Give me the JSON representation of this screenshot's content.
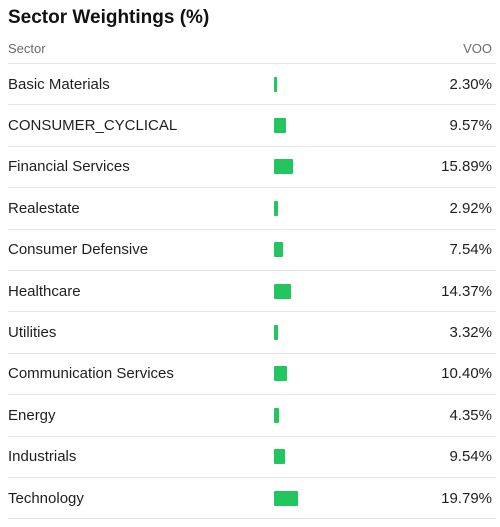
{
  "title": "Sector Weightings (%)",
  "header": {
    "sector_label": "Sector",
    "fund_label": "VOO"
  },
  "colors": {
    "bar": "#22c55e"
  },
  "chart_data": {
    "type": "bar",
    "title": "Sector Weightings (%)",
    "categories": [
      "Basic Materials",
      "CONSUMER_CYCLICAL",
      "Financial Services",
      "Realestate",
      "Consumer Defensive",
      "Healthcare",
      "Utilities",
      "Communication Services",
      "Energy",
      "Industrials",
      "Technology"
    ],
    "series": [
      {
        "name": "VOO",
        "values": [
          2.3,
          9.57,
          15.89,
          2.92,
          7.54,
          14.37,
          3.32,
          10.4,
          4.35,
          9.54,
          19.79
        ],
        "labels": [
          "2.30%",
          "9.57%",
          "15.89%",
          "2.92%",
          "7.54%",
          "14.37%",
          "3.32%",
          "10.40%",
          "4.35%",
          "9.54%",
          "19.79%"
        ]
      }
    ],
    "orientation": "horizontal",
    "xlim": [
      0,
      100
    ],
    "grid": false,
    "legend": "none"
  }
}
